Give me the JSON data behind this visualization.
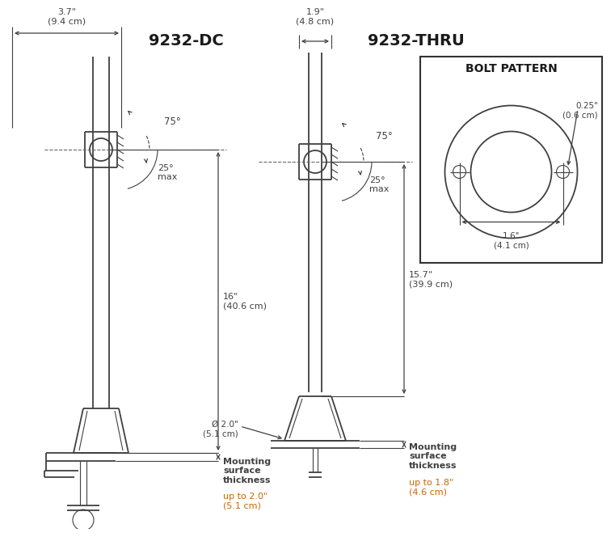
{
  "bg_color": "#ffffff",
  "line_color": "#404040",
  "dim_color": "#404040",
  "orange_color": "#cc6600",
  "dc_title": "9232-DC",
  "thru_title": "9232-THRU",
  "bolt_title": "BOLT PATTERN",
  "dc_width_label": "3.7\"\n(9.4 cm)",
  "dc_height_label": "16\"\n(40.6 cm)",
  "dc_mount_label1": "Mounting\nsurface\nthickness",
  "dc_mount_label2": "up to 2.0\"\n(5.1 cm)",
  "thru_width_label": "1.9\"\n(4.8 cm)",
  "thru_height_label": "15.7\"\n(39.9 cm)",
  "thru_mount_label1": "Mounting\nsurface\nthickness",
  "thru_mount_label2": "up to 1.8\"\n(4.6 cm)",
  "thru_dia_label": "Ø 2.0\"\n(5.1 cm)",
  "bolt_dia_label": "0.25\"\n(0.6 cm)",
  "bolt_span_label": "1.6\"\n(4.1 cm)",
  "angle_75": "75°",
  "angle_25": "25°\nmax"
}
